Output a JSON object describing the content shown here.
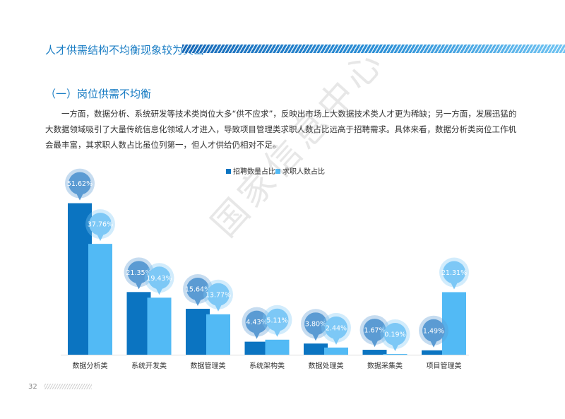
{
  "header": {
    "title": "人才供需结构不均衡现象较为突出"
  },
  "section": {
    "title": "（一）岗位供需不均衡"
  },
  "body_text": "一方面，数据分析、系统研发等技术类岗位大多“供不应求”，反映出市场上大数据技术类人才更为稀缺；另一方面，发展迅猛的大数据领域吸引了大量传统信息化领域人才进入，导致项目管理类求职人数占比远高于招聘需求。具体来看，数据分析类岗位工作机会最丰富，其求职人数占比虽位列第一，但人才供给仍相对不足。",
  "watermark": "国家信息中心",
  "footer": {
    "page_number": "32"
  },
  "colors": {
    "accent": "#1a7dc4",
    "series1": "#0b74c1",
    "series2": "#52baf5",
    "bubble1": "#5b9bd3",
    "bubble2": "#7dc8f6"
  },
  "chart_data": {
    "type": "bar",
    "categories": [
      "数据分析类",
      "系统开发类",
      "数据管理类",
      "系统架构类",
      "数据处理类",
      "数据采集类",
      "项目管理类"
    ],
    "series": [
      {
        "name": "招聘数量占比",
        "values": [
          51.62,
          21.35,
          15.64,
          4.43,
          3.8,
          1.67,
          1.49
        ],
        "labels": [
          "51.62%",
          "21.35%",
          "15.64%",
          "4.43%",
          "3.80%",
          "1.67%",
          "1.49%"
        ]
      },
      {
        "name": "求职人数占比",
        "values": [
          37.76,
          19.43,
          13.77,
          5.11,
          2.44,
          0.19,
          21.31
        ],
        "labels": [
          "37.76%",
          "19.43%",
          "13.77%",
          "5.11%",
          "2.44%",
          "0.19%",
          "21.31%"
        ]
      }
    ],
    "ylim": [
      0,
      52
    ],
    "legend_position": "top-center",
    "grid": false,
    "data_labels": "bubble"
  }
}
